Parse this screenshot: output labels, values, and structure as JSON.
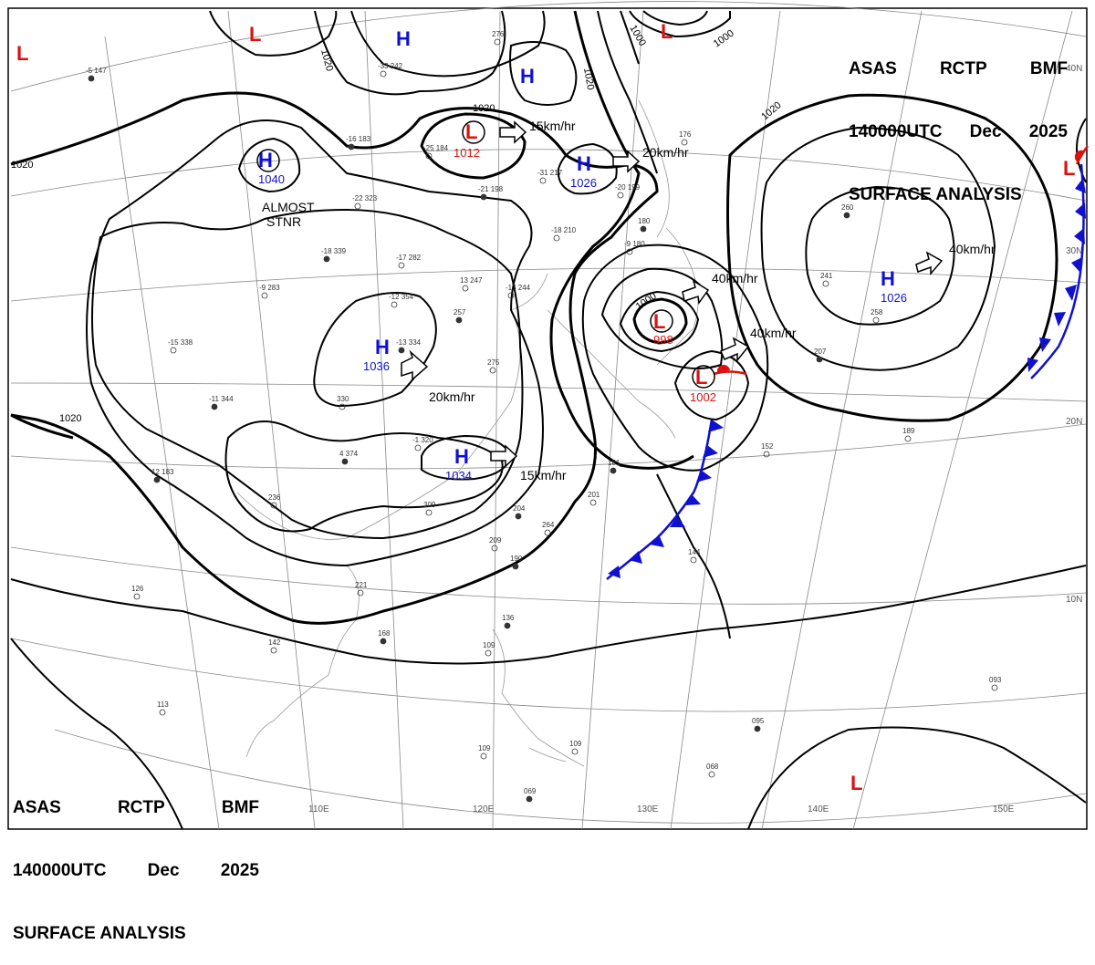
{
  "header": {
    "line1": [
      "ASAS",
      "RCTP",
      "BMF"
    ],
    "line2": [
      "140000UTC",
      "Dec",
      "2025"
    ],
    "line3": "SURFACE ANALYSIS"
  },
  "longitude_labels": [
    "110E",
    "120E",
    "130E",
    "140E",
    "150E"
  ],
  "latitude_labels": [
    "40N",
    "30N",
    "20N",
    "10N"
  ],
  "isobar_labels": [
    "1020",
    "1020",
    "1020",
    "1020",
    "1020",
    "1020",
    "1000",
    "1000",
    "1000"
  ],
  "pressure_centers": [
    {
      "type": "H",
      "value": "1040"
    },
    {
      "type": "H",
      "value": "1036"
    },
    {
      "type": "H",
      "value": "1034"
    },
    {
      "type": "H",
      "value": "1026"
    },
    {
      "type": "H",
      "value": "1026"
    },
    {
      "type": "L",
      "value": "1012"
    },
    {
      "type": "L",
      "value": "998"
    },
    {
      "type": "L",
      "value": "1002"
    },
    {
      "type": "H",
      "value": ""
    },
    {
      "type": "H",
      "value": ""
    },
    {
      "type": "L",
      "value": ""
    },
    {
      "type": "L",
      "value": ""
    },
    {
      "type": "L",
      "value": ""
    },
    {
      "type": "L",
      "value": ""
    },
    {
      "type": "L",
      "value": ""
    }
  ],
  "movement_labels": [
    "15km/hr",
    "20km/hr",
    "20km/hr",
    "15km/hr",
    "40km/hr",
    "40km/hr",
    "40km/hr"
  ],
  "stationary_note": [
    "ALMOST",
    "STNR"
  ],
  "colors": {
    "high": "#1010d0",
    "low": "#dd1010",
    "cold_front": "#1010d0",
    "warm_front": "#dd1010",
    "line": "#000000",
    "grid": "#555555"
  },
  "station_labels": [
    "-5 147",
    "-33 242",
    "276",
    "-16 183",
    "-25 184",
    "-31 217",
    "-21 198",
    "-20 199",
    "-22 323",
    "-18 339",
    "-17 282",
    "-12 354",
    "-13 334",
    "-9 283",
    "-15 338",
    "-11 344",
    "330",
    "-1 320",
    "4 374",
    "13 247",
    "-13 244",
    "257",
    "275",
    "-18 210",
    "180",
    "-9 180",
    "176",
    "260",
    "241",
    "258",
    "207",
    "152",
    "189",
    "12 183",
    "236",
    "309",
    "204",
    "264",
    "209",
    "190",
    "221",
    "126",
    "168",
    "142",
    "113",
    "136",
    "109",
    "201",
    "181",
    "144",
    "093",
    "095",
    "068",
    "109",
    "069",
    "109"
  ]
}
